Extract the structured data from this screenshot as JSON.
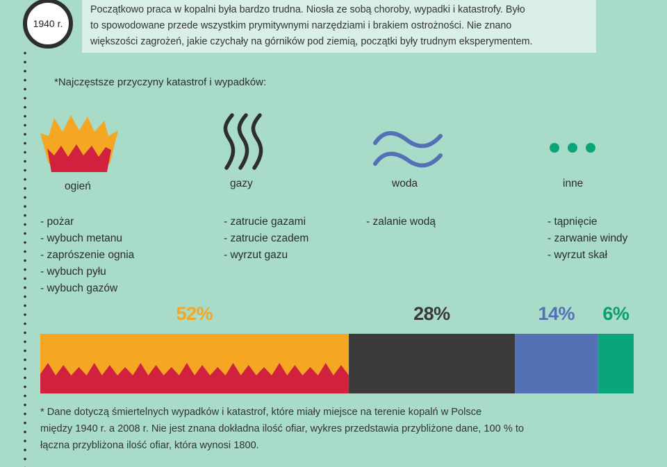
{
  "header": {
    "year": "1940 r.",
    "intro_lines": [
      "Początkowo praca w kopalni była bardzo trudna. Niosła ze sobą choroby, wypadki i katastrofy. Było",
      "to spowodowane przede wszystkim prymitywnymi narzędziami i brakiem ostrożności. Nie znano",
      "większości zagrożeń, jakie czychały na górników pod ziemią, początki były trudnym eksperymentem."
    ]
  },
  "subtitle": "*Najczęstsze przyczyny katastrof i wypadków:",
  "categories": [
    {
      "label": "ogień",
      "icon": "fire-icon",
      "causes": [
        "- pożar",
        "- wybuch metanu",
        "- zaprószenie ognia",
        "- wybuch pyłu",
        "- wybuch gazów"
      ]
    },
    {
      "label": "gazy",
      "icon": "gas-waves-icon",
      "causes": [
        "- zatrucie gazami",
        "- zatrucie czadem",
        "- wyrzut gazu"
      ]
    },
    {
      "label": "woda",
      "icon": "water-waves-icon",
      "causes": [
        "- zalanie wodą"
      ]
    },
    {
      "label": "inne",
      "icon": "three-dots-icon",
      "causes": [
        "- tąpnięcie",
        "- zarwanie windy",
        "- wyrzut skał"
      ]
    }
  ],
  "chart_data": {
    "type": "bar",
    "stacked": true,
    "orientation": "horizontal",
    "categories": [
      "ogień",
      "gazy",
      "woda",
      "inne"
    ],
    "values": [
      52,
      28,
      14,
      6
    ],
    "value_labels": [
      "52%",
      "28%",
      "14%",
      "6%"
    ],
    "colors": [
      "#f5a623",
      "#3a3a3a",
      "#5571b5",
      "#0aa67a"
    ],
    "label_colors": [
      "#f5a623",
      "#3a3a3a",
      "#5571b5",
      "#0a9e72"
    ],
    "fire_pattern_color": "#d0223f",
    "unit": "%",
    "total": 100
  },
  "footnote_lines": [
    "* Dane dotyczą śmiertelnych wypadków i katastrof, które miały miejsce na terenie kopalń w Polsce",
    "między 1940 r. a 2008 r. Nie jest znana dokładna ilość ofiar, wykres przedstawia przybliżone dane, 100 % to",
    "łączna przybliżona ilość ofiar, która wynosi 1800."
  ]
}
